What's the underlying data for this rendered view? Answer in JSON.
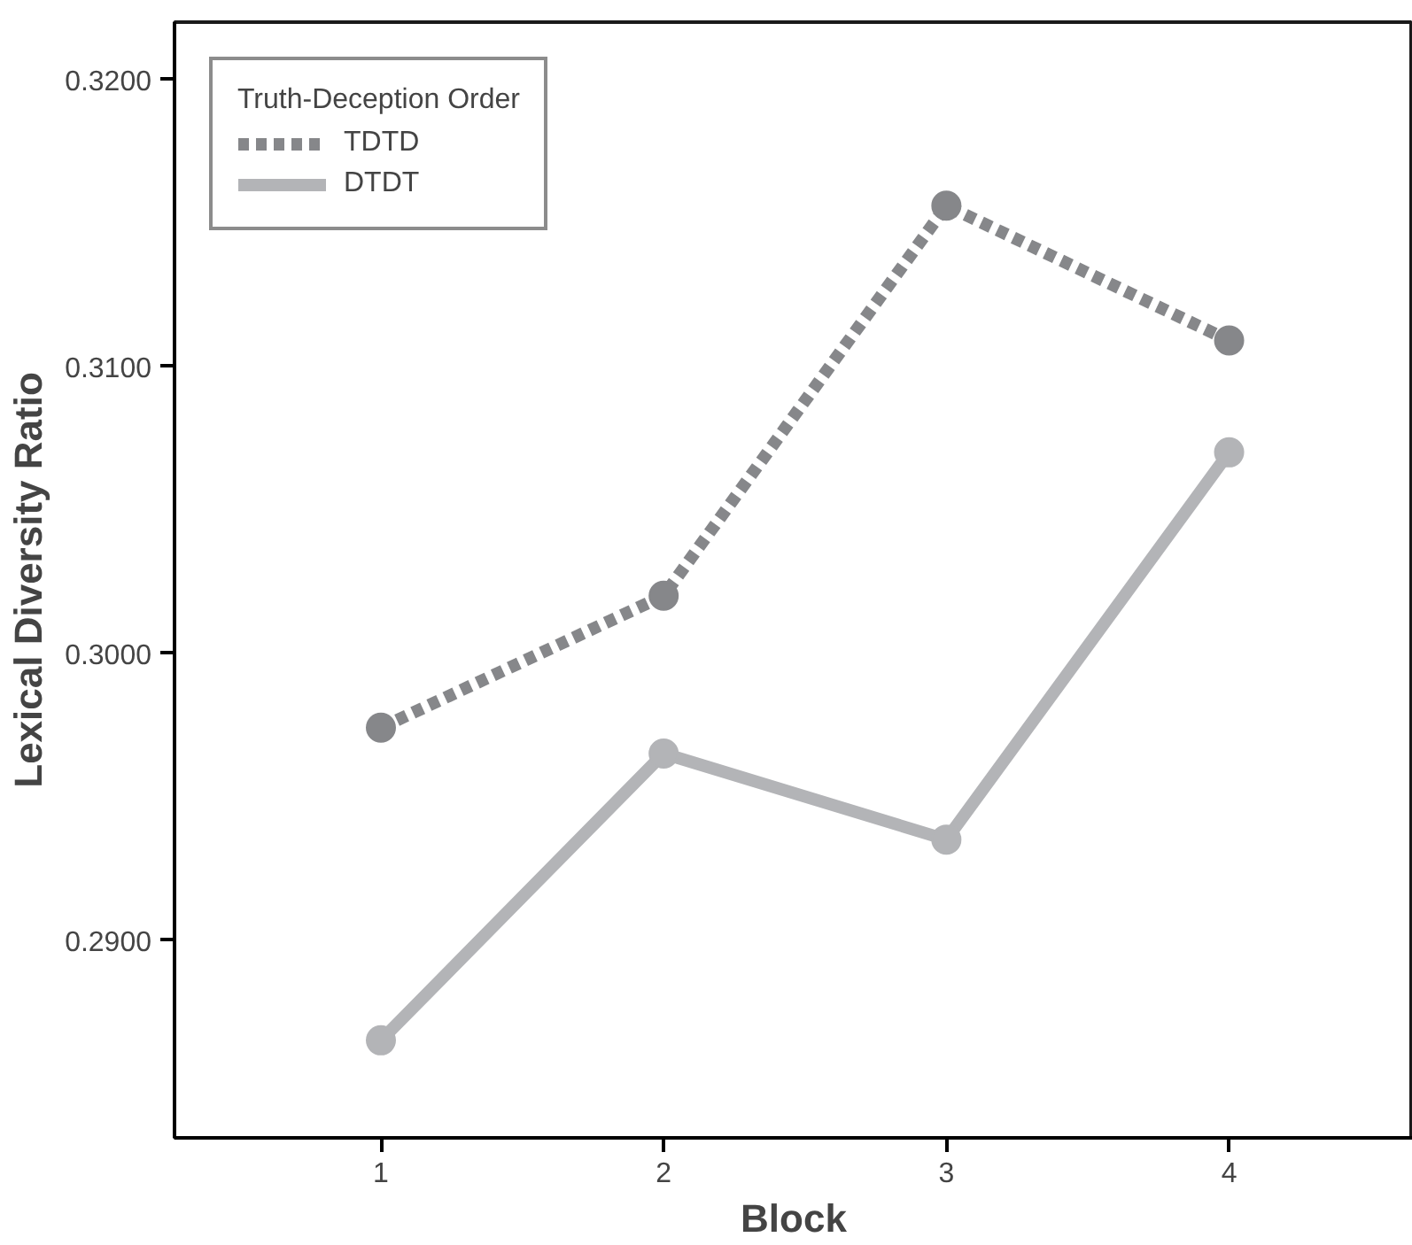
{
  "chart_data": {
    "type": "line",
    "xlabel": "Block",
    "ylabel": "Lexical Diversity Ratio",
    "legend_title": "Truth-Deception Order",
    "x": [
      1,
      2,
      3,
      4
    ],
    "series": [
      {
        "name": "TDTD",
        "color": "#86878a",
        "line_style": "dashed",
        "values": [
          0.2974,
          0.302,
          0.3156,
          0.3109
        ]
      },
      {
        "name": "DTDT",
        "color": "#b3b4b7",
        "line_style": "solid",
        "values": [
          0.2865,
          0.2965,
          0.2935,
          0.307
        ]
      }
    ],
    "xlim": [
      0.27,
      4.65
    ],
    "ylim": [
      0.2831,
      0.322
    ],
    "xticks": [
      1,
      2,
      3,
      4
    ],
    "yticks": [
      {
        "value": 0.29,
        "label": "0.2900"
      },
      {
        "value": 0.3,
        "label": "0.3000"
      },
      {
        "value": 0.31,
        "label": "0.3100"
      },
      {
        "value": 0.32,
        "label": "0.3200"
      }
    ],
    "grid": false,
    "legend": "top left",
    "marker": "circle"
  }
}
